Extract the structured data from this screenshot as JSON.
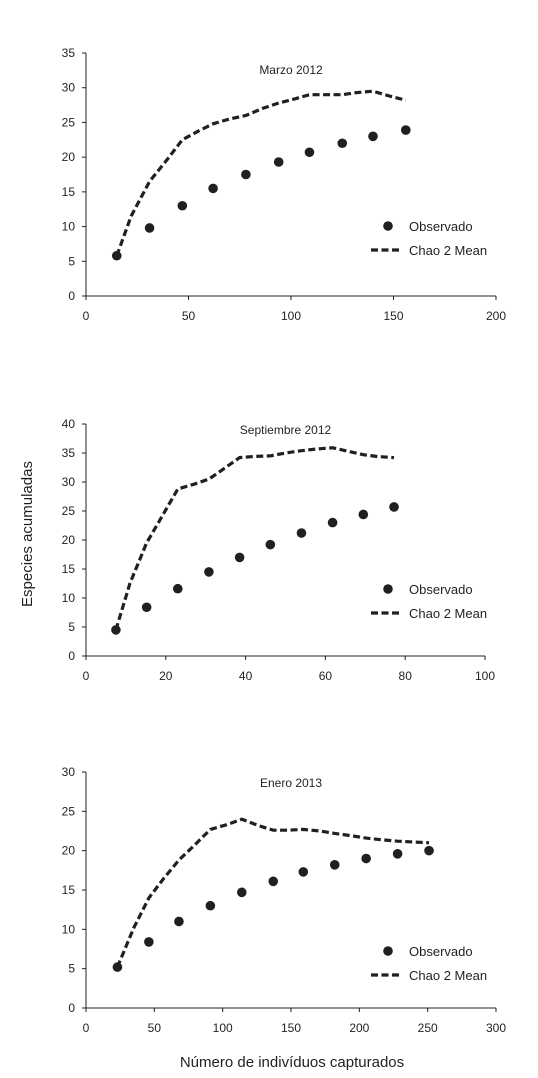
{
  "xlabel": "Número de indivíduos capturados",
  "ylabel": "Especies acumuladas",
  "chart_data": [
    {
      "type": "scatter",
      "title": "Marzo 2012",
      "xlim": [
        0,
        200
      ],
      "ylim": [
        0,
        35
      ],
      "xticks": [
        0,
        50,
        100,
        150,
        200
      ],
      "yticks": [
        0,
        5,
        10,
        15,
        20,
        25,
        30,
        35
      ],
      "legend_position": "right",
      "series": [
        {
          "name": "Observado",
          "style": "markers",
          "x": [
            15,
            31,
            47,
            62,
            78,
            94,
            109,
            125,
            140,
            156
          ],
          "y": [
            5.8,
            9.8,
            13.0,
            15.5,
            17.5,
            19.3,
            20.7,
            22.0,
            23.0,
            23.9
          ]
        },
        {
          "name": "Chao 2 Mean",
          "style": "dashed",
          "x": [
            15,
            22,
            31,
            40,
            47,
            55,
            62,
            70,
            78,
            86,
            94,
            102,
            109,
            117,
            125,
            132,
            140,
            148,
            156
          ],
          "y": [
            5.8,
            11.5,
            16.5,
            19.8,
            22.5,
            23.8,
            24.8,
            25.5,
            26.0,
            27.0,
            27.8,
            28.4,
            29.0,
            29.0,
            29.0,
            29.3,
            29.5,
            28.8,
            28.2
          ]
        }
      ]
    },
    {
      "type": "scatter",
      "title": "Septiembre 2012",
      "xlim": [
        0,
        100
      ],
      "ylim": [
        0,
        40
      ],
      "xticks": [
        0,
        20,
        40,
        60,
        80,
        100
      ],
      "yticks": [
        0,
        5,
        10,
        15,
        20,
        25,
        30,
        35,
        40
      ],
      "legend_position": "right",
      "series": [
        {
          "name": "Observado",
          "style": "markers",
          "x": [
            7.5,
            15.2,
            23.0,
            30.8,
            38.5,
            46.2,
            54.0,
            61.8,
            69.5,
            77.2
          ],
          "y": [
            4.5,
            8.4,
            11.6,
            14.5,
            17.0,
            19.2,
            21.2,
            23.0,
            24.4,
            25.7
          ]
        },
        {
          "name": "Chao 2 Mean",
          "style": "dashed",
          "x": [
            7.5,
            11,
            15.2,
            19,
            23.0,
            27,
            30.8,
            35,
            38.5,
            42,
            46.2,
            50,
            54.0,
            58,
            61.8,
            65,
            69.5,
            73,
            77.2
          ],
          "y": [
            4.5,
            12.5,
            19.5,
            24.0,
            28.8,
            29.6,
            30.5,
            32.5,
            34.2,
            34.4,
            34.5,
            35.0,
            35.4,
            35.7,
            35.9,
            35.4,
            34.7,
            34.4,
            34.2
          ]
        }
      ]
    },
    {
      "type": "scatter",
      "title": "Enero 2013",
      "xlim": [
        0,
        300
      ],
      "ylim": [
        0,
        30
      ],
      "xticks": [
        0,
        50,
        100,
        150,
        200,
        250,
        300
      ],
      "yticks": [
        0,
        5,
        10,
        15,
        20,
        25,
        30
      ],
      "legend_position": "right",
      "series": [
        {
          "name": "Observado",
          "style": "markers",
          "x": [
            23,
            46,
            68,
            91,
            114,
            137,
            159,
            182,
            205,
            228,
            251
          ],
          "y": [
            5.2,
            8.4,
            11.0,
            13.0,
            14.7,
            16.1,
            17.3,
            18.2,
            19.0,
            19.6,
            20.0
          ]
        },
        {
          "name": "Chao 2 Mean",
          "style": "dashed",
          "x": [
            23,
            35,
            46,
            57,
            68,
            80,
            91,
            103,
            114,
            126,
            137,
            148,
            159,
            171,
            182,
            194,
            205,
            216,
            228,
            240,
            251
          ],
          "y": [
            5.2,
            10.2,
            14.0,
            16.5,
            18.8,
            20.8,
            22.7,
            23.3,
            24.0,
            23.2,
            22.6,
            22.6,
            22.7,
            22.5,
            22.2,
            21.9,
            21.6,
            21.4,
            21.2,
            21.1,
            21.0
          ]
        }
      ]
    }
  ]
}
